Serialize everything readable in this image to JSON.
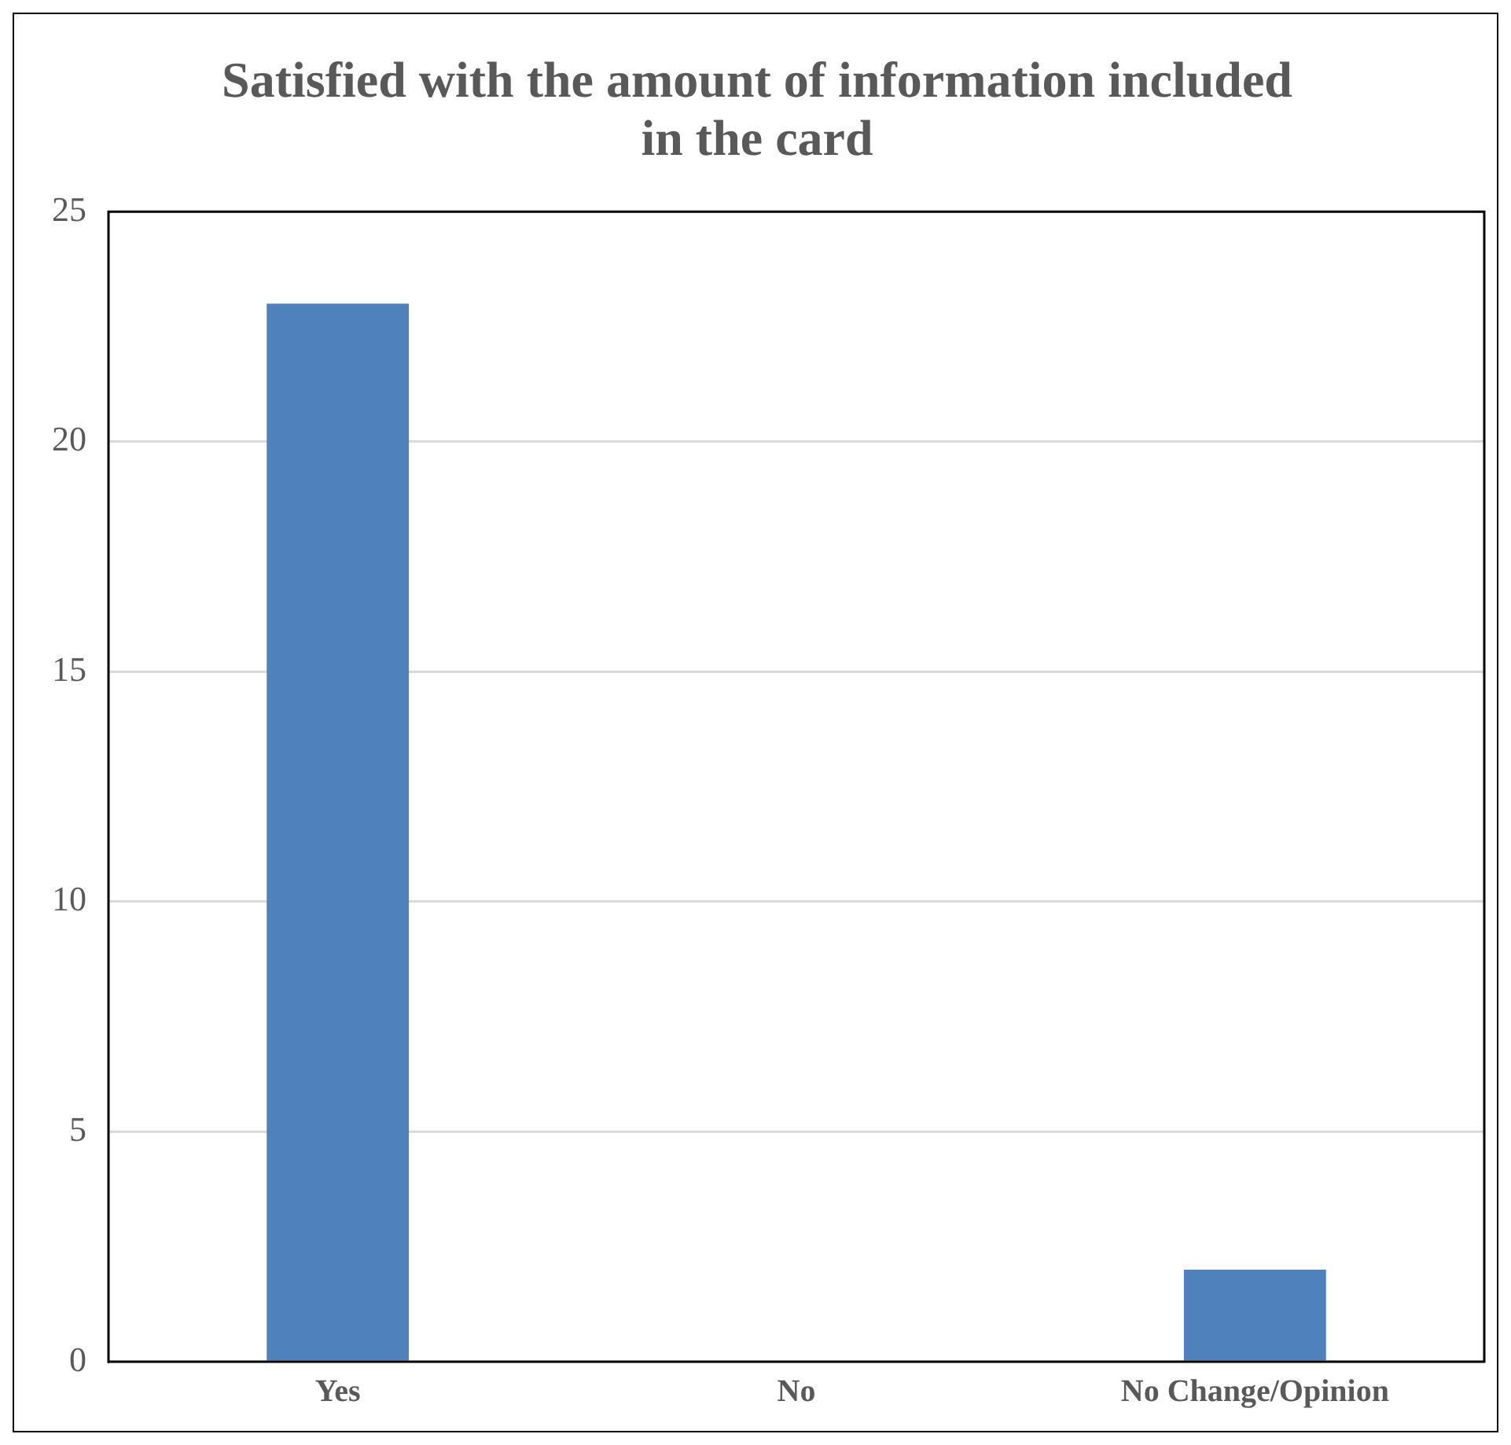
{
  "chart_data": {
    "type": "bar",
    "title": "Satisfied with the amount of information included in the card",
    "categories": [
      "Yes",
      "No",
      "No Change/Opinion"
    ],
    "values": [
      23,
      0,
      2
    ],
    "color": "#4f81bd",
    "ylim": [
      0,
      25
    ],
    "yticks": [
      0,
      5,
      10,
      15,
      20,
      25
    ],
    "grid": "y"
  }
}
